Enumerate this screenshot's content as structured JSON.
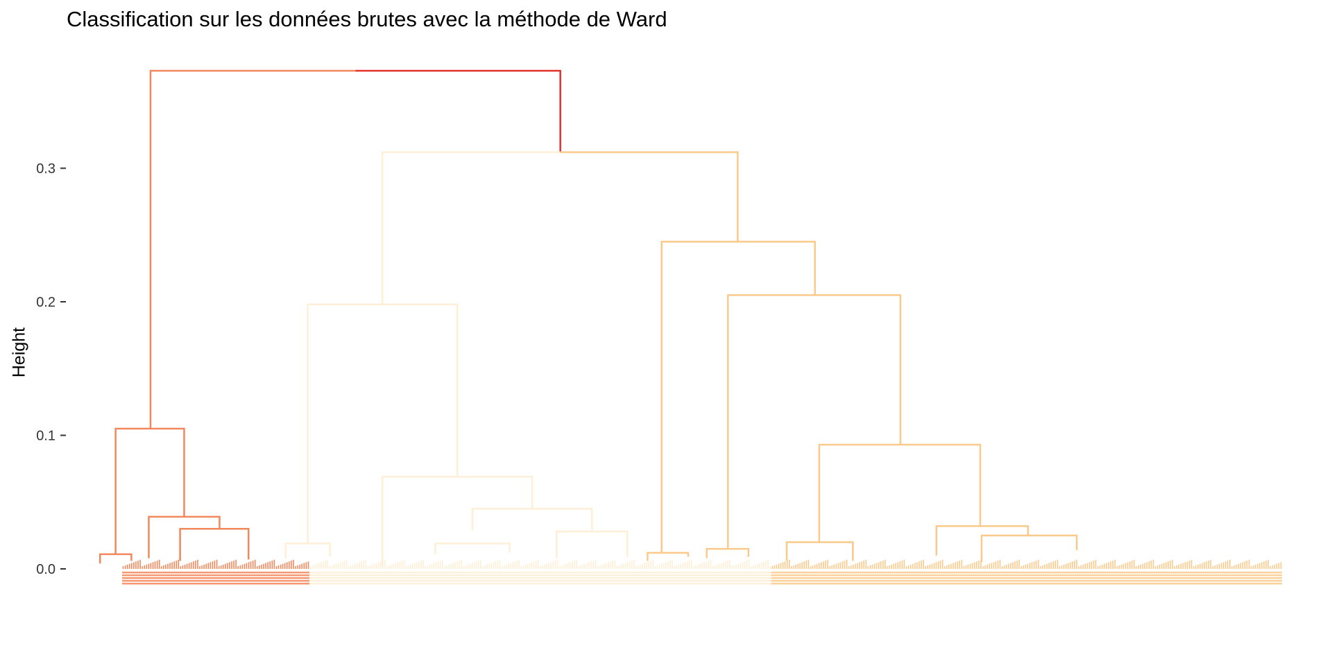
{
  "chart_data": {
    "type": "dendrogram",
    "title": "Classification sur les données brutes avec la méthode de Ward",
    "xlabel": "",
    "ylabel": "Height",
    "ylim": [
      -0.02,
      0.38
    ],
    "y_ticks": [
      0.0,
      0.1,
      0.2,
      0.3
    ],
    "y_tick_labels": [
      "0.0",
      "0.1",
      "0.2",
      "0.3"
    ],
    "grid": false,
    "legend": "none",
    "n_clusters": 3,
    "leaf_count_per_cluster": [
      88,
      217,
      240
    ],
    "root_height": 0.373,
    "cluster_colors": [
      "#F2875B",
      "#FEEFD6",
      "#FBC98A"
    ],
    "root_color": "#E3302A",
    "merges": [
      {
        "name": "root",
        "height": 0.373,
        "left": 0.198,
        "right": 0.498,
        "center": 0.338,
        "color_left": "#F2875B",
        "color_right": "#E3302A"
      },
      {
        "name": "cluster-1",
        "height": 0.105,
        "left": 0.105,
        "right": 0.288,
        "center": 0.198,
        "color": "#F2875B"
      },
      {
        "name": "cluster-1-right",
        "height": 0.039,
        "left": 0.213,
        "right": 0.36,
        "center": 0.288,
        "color": "#F2875B"
      },
      {
        "name": "cluster-1-right-sub",
        "height": 0.03,
        "left": 0.311,
        "right": 0.41,
        "center": 0.36,
        "color": "#F2875B"
      },
      {
        "name": "cluster-1-left-sub",
        "height": 0.011,
        "left": 0.06,
        "right": 0.15,
        "center": 0.105,
        "color": "#F2875B"
      },
      {
        "name": "cluster-2-3",
        "height": 0.312,
        "left": 0.288,
        "right": 0.657,
        "center": 0.498,
        "color_left": "#FEEFD6",
        "color_right": "#FBC98A"
      },
      {
        "name": "cluster-2",
        "height": 0.198,
        "left": 0.203,
        "right": 0.373,
        "center": 0.288,
        "color": "#FEEFD6"
      },
      {
        "name": "cluster-2-right",
        "height": 0.069,
        "left": 0.308,
        "right": 0.437,
        "center": 0.373,
        "color": "#FEEFD6"
      },
      {
        "name": "cluster-2-right-sub",
        "height": 0.045,
        "left": 0.388,
        "right": 0.486,
        "center": 0.437,
        "color": "#FEEFD6"
      },
      {
        "name": "cluster-2-left",
        "height": 0.019,
        "left": 0.096,
        "right": 0.31,
        "center": 0.203,
        "color": "#FEEFD6"
      },
      {
        "name": "cluster-3",
        "height": 0.245,
        "left": 0.562,
        "right": 0.752,
        "center": 0.657,
        "color": "#FBC98A"
      },
      {
        "name": "cluster-3-right",
        "height": 0.205,
        "left": 0.627,
        "right": 0.877,
        "center": 0.752,
        "color": "#FBC98A"
      },
      {
        "name": "cluster-3-right-sub",
        "height": 0.093,
        "left": 0.748,
        "right": 1.006,
        "center": 0.877,
        "color": "#FBC98A"
      },
      {
        "name": "cluster-3-low-a",
        "height": 0.02,
        "left": 0.69,
        "right": 0.806,
        "center": 0.748,
        "color": "#FBC98A"
      },
      {
        "name": "cluster-3-low-b",
        "height": 0.032,
        "left": 0.933,
        "right": 1.079,
        "center": 1.006,
        "color": "#FBC98A"
      }
    ]
  }
}
